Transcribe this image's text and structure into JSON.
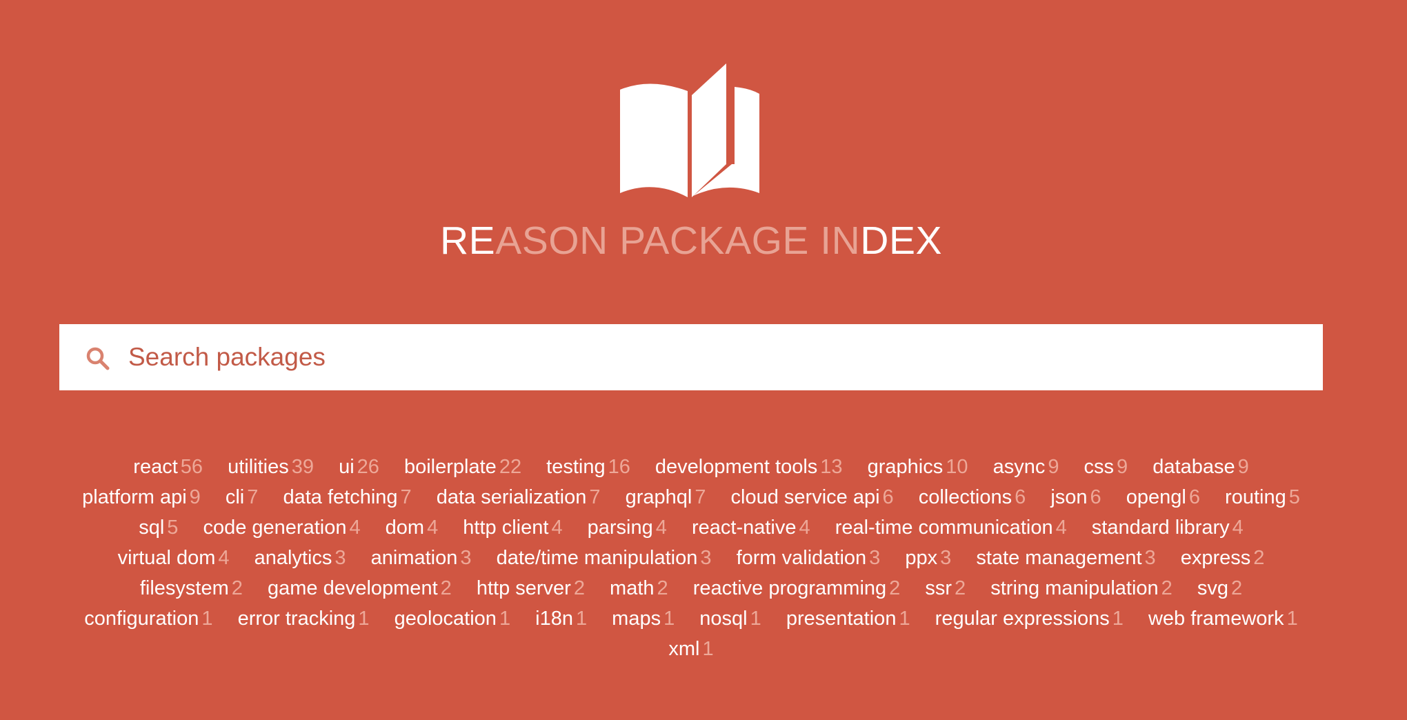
{
  "header": {
    "logo_icon": "open-book-icon",
    "title_prefix": "RE",
    "title_middle": "ASON PACKAGE IN",
    "title_suffix": "DEX"
  },
  "search": {
    "icon": "search-icon",
    "placeholder": "Search packages",
    "value": ""
  },
  "colors": {
    "background": "#d05642",
    "title_dim": "#e8a394",
    "count": "#eda898",
    "search_text": "#c25a47"
  },
  "tags": [
    {
      "label": "react",
      "count": "56"
    },
    {
      "label": "utilities",
      "count": "39"
    },
    {
      "label": "ui",
      "count": "26"
    },
    {
      "label": "boilerplate",
      "count": "22"
    },
    {
      "label": "testing",
      "count": "16"
    },
    {
      "label": "development tools",
      "count": "13"
    },
    {
      "label": "graphics",
      "count": "10"
    },
    {
      "label": "async",
      "count": "9"
    },
    {
      "label": "css",
      "count": "9"
    },
    {
      "label": "database",
      "count": "9"
    },
    {
      "label": "platform api",
      "count": "9"
    },
    {
      "label": "cli",
      "count": "7"
    },
    {
      "label": "data fetching",
      "count": "7"
    },
    {
      "label": "data serialization",
      "count": "7"
    },
    {
      "label": "graphql",
      "count": "7"
    },
    {
      "label": "cloud service api",
      "count": "6"
    },
    {
      "label": "collections",
      "count": "6"
    },
    {
      "label": "json",
      "count": "6"
    },
    {
      "label": "opengl",
      "count": "6"
    },
    {
      "label": "routing",
      "count": "5"
    },
    {
      "label": "sql",
      "count": "5"
    },
    {
      "label": "code generation",
      "count": "4"
    },
    {
      "label": "dom",
      "count": "4"
    },
    {
      "label": "http client",
      "count": "4"
    },
    {
      "label": "parsing",
      "count": "4"
    },
    {
      "label": "react-native",
      "count": "4"
    },
    {
      "label": "real-time communication",
      "count": "4"
    },
    {
      "label": "standard library",
      "count": "4"
    },
    {
      "label": "virtual dom",
      "count": "4"
    },
    {
      "label": "analytics",
      "count": "3"
    },
    {
      "label": "animation",
      "count": "3"
    },
    {
      "label": "date/time manipulation",
      "count": "3"
    },
    {
      "label": "form validation",
      "count": "3"
    },
    {
      "label": "ppx",
      "count": "3"
    },
    {
      "label": "state management",
      "count": "3"
    },
    {
      "label": "express",
      "count": "2"
    },
    {
      "label": "filesystem",
      "count": "2"
    },
    {
      "label": "game development",
      "count": "2"
    },
    {
      "label": "http server",
      "count": "2"
    },
    {
      "label": "math",
      "count": "2"
    },
    {
      "label": "reactive programming",
      "count": "2"
    },
    {
      "label": "ssr",
      "count": "2"
    },
    {
      "label": "string manipulation",
      "count": "2"
    },
    {
      "label": "svg",
      "count": "2"
    },
    {
      "label": "configuration",
      "count": "1"
    },
    {
      "label": "error tracking",
      "count": "1"
    },
    {
      "label": "geolocation",
      "count": "1"
    },
    {
      "label": "i18n",
      "count": "1"
    },
    {
      "label": "maps",
      "count": "1"
    },
    {
      "label": "nosql",
      "count": "1"
    },
    {
      "label": "presentation",
      "count": "1"
    },
    {
      "label": "regular expressions",
      "count": "1"
    },
    {
      "label": "web framework",
      "count": "1"
    },
    {
      "label": "xml",
      "count": "1"
    }
  ]
}
